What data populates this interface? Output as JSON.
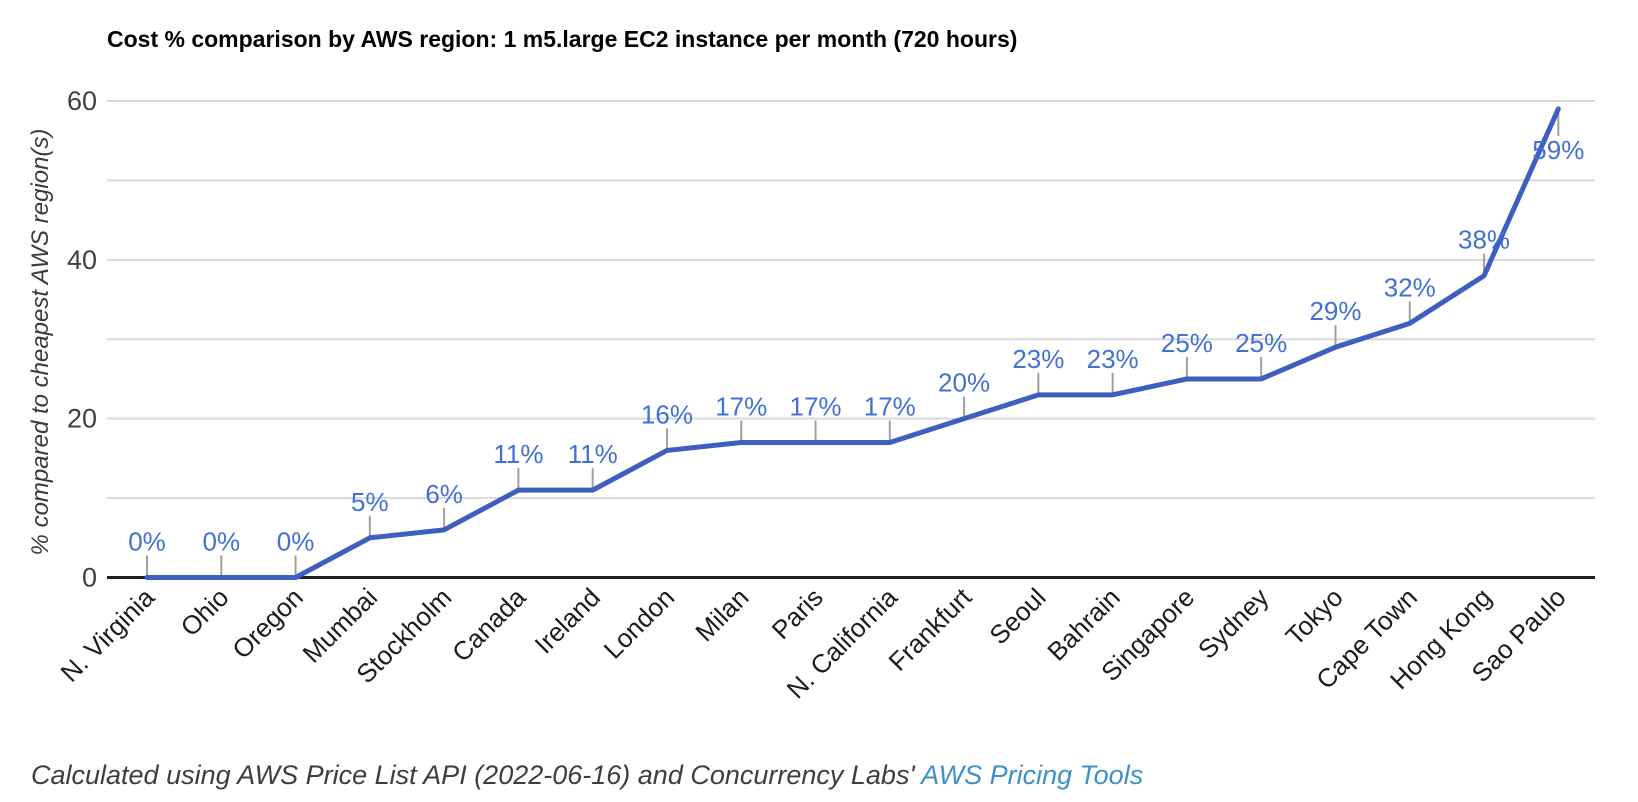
{
  "chart_data": {
    "type": "line",
    "title": "Cost % comparison by AWS region: 1 m5.large EC2 instance per month (720 hours)",
    "ylabel": "% compared to cheapest AWS region(s)",
    "xlabel": "",
    "categories": [
      "N. Virginia",
      "Ohio",
      "Oregon",
      "Mumbai",
      "Stockholm",
      "Canada",
      "Ireland",
      "London",
      "Milan",
      "Paris",
      "N. California",
      "Frankfurt",
      "Seoul",
      "Bahrain",
      "Singapore",
      "Sydney",
      "Tokyo",
      "Cape Town",
      "Hong Kong",
      "Sao Paulo"
    ],
    "values": [
      0,
      0,
      0,
      5,
      6,
      11,
      11,
      16,
      17,
      17,
      17,
      20,
      23,
      23,
      25,
      25,
      29,
      32,
      38,
      59
    ],
    "data_label_suffix": "%",
    "ylim": [
      0,
      60
    ],
    "yticks": [
      0,
      20,
      40,
      60
    ],
    "gridline_values": [
      10,
      20,
      30,
      40,
      50,
      60
    ],
    "grid": true,
    "legend": "none",
    "colors": {
      "line": "#3d60c0",
      "data_label": "#4270d6",
      "gridline": "#d9d9d9",
      "leader": "#a0a0a0",
      "axis": "#1f1f1f",
      "y_tick_label": "#404040",
      "x_tick_label": "#1c1c1c"
    }
  },
  "footer": {
    "prefix": "Calculated using AWS Price List API (2022-06-16) and Concurrency Labs' ",
    "link_text": "AWS Pricing Tools",
    "link_color": "#3f90c6"
  }
}
